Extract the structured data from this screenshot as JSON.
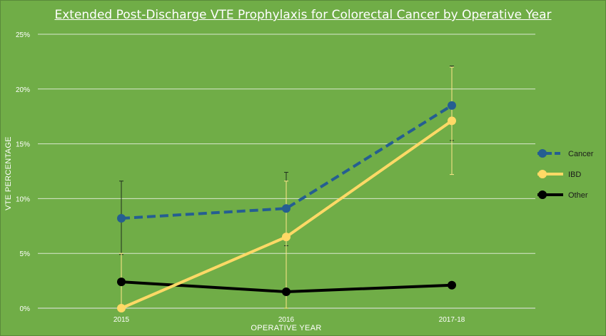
{
  "chart_data": {
    "type": "line",
    "title": "Extended Post-Discharge VTE Prophylaxis for Colorectal Cancer by Operative Year",
    "xlabel": "OPERATIVE YEAR",
    "ylabel": "VTE PERCENTAGE",
    "categories": [
      "2015",
      "2016",
      "2017-18"
    ],
    "ylim": [
      0,
      25
    ],
    "y_ticks": [
      0,
      5,
      10,
      15,
      20,
      25
    ],
    "y_tick_labels": [
      "0%",
      "5%",
      "10%",
      "15%",
      "20%",
      "25%"
    ],
    "grid": true,
    "legend_position": "right",
    "series": [
      {
        "name": "Cancer",
        "color": "#255e91",
        "dashed": true,
        "values": [
          8.2,
          9.1,
          18.5
        ],
        "error_low": [
          4.9,
          5.7,
          15.3
        ],
        "error_high": [
          11.6,
          12.4,
          22.1
        ]
      },
      {
        "name": "IBD",
        "color": "#ffd966",
        "dashed": false,
        "values": [
          0,
          6.5,
          17.1
        ],
        "error_low": [
          0,
          0,
          12.2
        ],
        "error_high": [
          5.0,
          11.6,
          22.0
        ]
      },
      {
        "name": "Other",
        "color": "#000000",
        "dashed": false,
        "values": [
          2.4,
          1.5,
          2.1
        ],
        "error_low": [
          2.4,
          1.3,
          2.1
        ],
        "error_high": [
          2.4,
          1.8,
          2.1
        ]
      }
    ]
  }
}
